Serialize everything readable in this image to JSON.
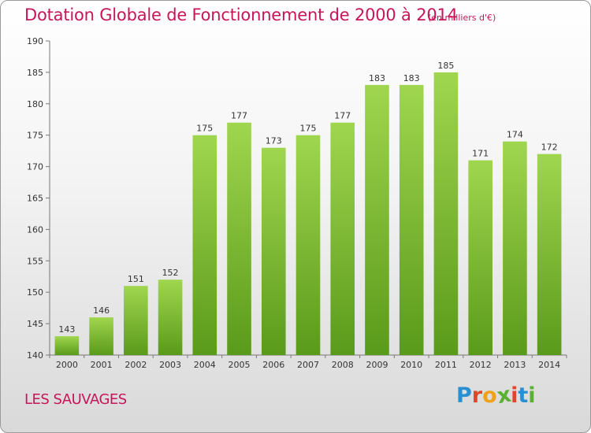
{
  "header": {
    "title": "Dotation Globale de Fonctionnement de 2000 à 2014",
    "units": "(en milliers d'€)"
  },
  "footer": {
    "location": "LES SAUVAGES",
    "logo_text": "Proxiti",
    "logo_letters": [
      {
        "ch": "P",
        "color": "#2a8fd0"
      },
      {
        "ch": "r",
        "color": "#e2452a"
      },
      {
        "ch": "o",
        "color": "#f0a11a"
      },
      {
        "ch": "x",
        "color": "#59b031"
      },
      {
        "ch": "i",
        "color": "#e2452a"
      },
      {
        "ch": "t",
        "color": "#2a8fd0"
      },
      {
        "ch": "i",
        "color": "#59b031"
      }
    ]
  },
  "chart_data": {
    "type": "bar",
    "title": "Dotation Globale de Fonctionnement de 2000 à 2014",
    "categories": [
      "2000",
      "2001",
      "2002",
      "2003",
      "2004",
      "2005",
      "2006",
      "2007",
      "2008",
      "2009",
      "2010",
      "2011",
      "2012",
      "2013",
      "2014"
    ],
    "values": [
      143,
      146,
      151,
      152,
      175,
      177,
      173,
      175,
      177,
      183,
      183,
      185,
      171,
      174,
      172
    ],
    "ylim": [
      140,
      190
    ],
    "yticks": [
      140,
      145,
      150,
      155,
      160,
      165,
      170,
      175,
      180,
      185,
      190
    ],
    "grid": false,
    "bar_color": "#7cbf35",
    "bar_color_light": "#a0d64f",
    "bar_color_dark": "#5a9a1a"
  }
}
